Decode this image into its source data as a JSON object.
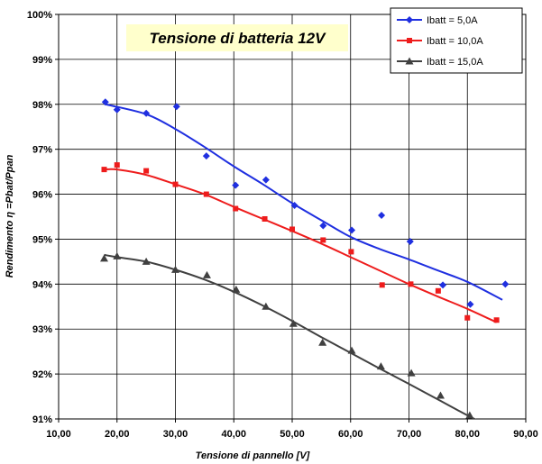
{
  "chart_data": {
    "type": "scatter",
    "title": "Tensione di batteria 12V",
    "xlabel": "Tensione di pannello [V]",
    "ylabel": "Rendimento η =Pbat/Ppan",
    "xlim": [
      10,
      90
    ],
    "ylim": [
      91,
      100
    ],
    "x_ticks": [
      "10,00",
      "20,00",
      "30,00",
      "40,00",
      "50,00",
      "60,00",
      "70,00",
      "80,00",
      "90,00"
    ],
    "y_ticks": [
      "91%",
      "92%",
      "93%",
      "94%",
      "95%",
      "96%",
      "97%",
      "98%",
      "99%",
      "100%"
    ],
    "grid": true,
    "legend_position": "top-right",
    "series": [
      {
        "name": "Ibatt = 5,0A",
        "color": "#1f2fe0",
        "marker": "diamond",
        "points": [
          [
            18,
            98.05
          ],
          [
            20,
            97.88
          ],
          [
            25,
            97.8
          ],
          [
            30.2,
            97.95
          ],
          [
            35.3,
            96.85
          ],
          [
            40.3,
            96.2
          ],
          [
            45.5,
            96.32
          ],
          [
            50.4,
            95.75
          ],
          [
            55.3,
            95.3
          ],
          [
            60.2,
            95.2
          ],
          [
            65.3,
            95.53
          ],
          [
            70.2,
            94.95
          ],
          [
            75.8,
            93.98
          ],
          [
            80.5,
            93.55
          ],
          [
            86.5,
            94.0
          ]
        ],
        "trend": [
          [
            18,
            98.0
          ],
          [
            25,
            97.78
          ],
          [
            30,
            97.45
          ],
          [
            35,
            97.05
          ],
          [
            40,
            96.62
          ],
          [
            45,
            96.22
          ],
          [
            50,
            95.8
          ],
          [
            55,
            95.42
          ],
          [
            60,
            95.05
          ],
          [
            65,
            94.78
          ],
          [
            70,
            94.55
          ],
          [
            75,
            94.3
          ],
          [
            80,
            94.05
          ],
          [
            86,
            93.65
          ]
        ]
      },
      {
        "name": "Ibatt = 10,0A",
        "color": "#ee1c1c",
        "marker": "square",
        "points": [
          [
            17.8,
            96.55
          ],
          [
            20,
            96.65
          ],
          [
            25,
            96.52
          ],
          [
            30,
            96.22
          ],
          [
            35.3,
            96.0
          ],
          [
            40.3,
            95.68
          ],
          [
            45.3,
            95.45
          ],
          [
            50,
            95.22
          ],
          [
            55.3,
            94.98
          ],
          [
            60.1,
            94.72
          ],
          [
            65.4,
            93.98
          ],
          [
            70.3,
            94.0
          ],
          [
            75,
            93.85
          ],
          [
            80,
            93.25
          ],
          [
            85,
            93.2
          ]
        ],
        "trend": [
          [
            17.8,
            96.55
          ],
          [
            20,
            96.55
          ],
          [
            25,
            96.43
          ],
          [
            30,
            96.22
          ],
          [
            35,
            96.0
          ],
          [
            40,
            95.72
          ],
          [
            45,
            95.45
          ],
          [
            50,
            95.18
          ],
          [
            55,
            94.9
          ],
          [
            60,
            94.6
          ],
          [
            65,
            94.3
          ],
          [
            70,
            94.0
          ],
          [
            75,
            93.72
          ],
          [
            80,
            93.45
          ],
          [
            85,
            93.15
          ]
        ]
      },
      {
        "name": "Ibatt = 15,0A",
        "color": "#404040",
        "marker": "triangle",
        "points": [
          [
            17.8,
            94.57
          ],
          [
            20,
            94.62
          ],
          [
            25,
            94.5
          ],
          [
            30,
            94.32
          ],
          [
            35.4,
            94.2
          ],
          [
            40.4,
            93.88
          ],
          [
            45.5,
            93.5
          ],
          [
            50.2,
            93.12
          ],
          [
            55.2,
            92.7
          ],
          [
            60.2,
            92.52
          ],
          [
            65.2,
            92.17
          ],
          [
            70.4,
            92.02
          ],
          [
            75.4,
            91.52
          ],
          [
            80.4,
            91.08
          ]
        ],
        "trend": [
          [
            17.8,
            94.65
          ],
          [
            20,
            94.6
          ],
          [
            25,
            94.5
          ],
          [
            30,
            94.32
          ],
          [
            35,
            94.1
          ],
          [
            40,
            93.83
          ],
          [
            45,
            93.52
          ],
          [
            50,
            93.18
          ],
          [
            55,
            92.82
          ],
          [
            60,
            92.47
          ],
          [
            65,
            92.12
          ],
          [
            70,
            91.78
          ],
          [
            75,
            91.43
          ],
          [
            80,
            91.08
          ],
          [
            84,
            90.82
          ]
        ]
      }
    ]
  }
}
